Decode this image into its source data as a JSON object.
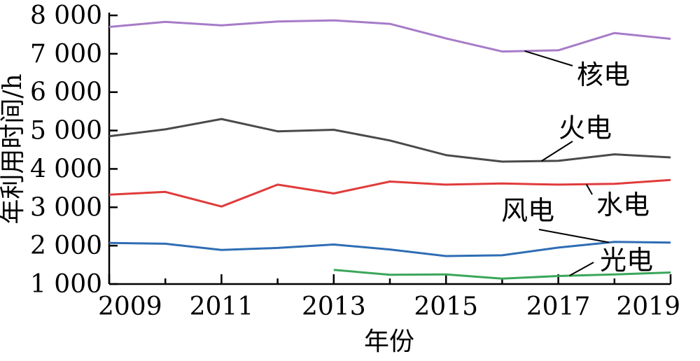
{
  "chart_data": {
    "type": "line",
    "title": "",
    "xlabel": "年份",
    "ylabel": "年利用时间/h",
    "x_ticks": [
      "2009",
      "2011",
      "2013",
      "2015",
      "2017",
      "2019"
    ],
    "y_ticks": [
      "1 000",
      "2 000",
      "3 000",
      "4 000",
      "5 000",
      "6 000",
      "7 000",
      "8 000"
    ],
    "xlim": [
      2009,
      2019
    ],
    "ylim": [
      1000,
      8000
    ],
    "grid": false,
    "series": [
      {
        "name": "核电",
        "color": "#a77bc8",
        "x": [
          2009,
          2010,
          2011,
          2012,
          2013,
          2014,
          2015,
          2016,
          2017,
          2018,
          2019
        ],
        "values": [
          7700,
          7830,
          7740,
          7840,
          7870,
          7780,
          7400,
          7060,
          7090,
          7540,
          7390
        ]
      },
      {
        "name": "火电",
        "color": "#4a4a4a",
        "x": [
          2009,
          2010,
          2011,
          2012,
          2013,
          2014,
          2015,
          2016,
          2017,
          2018,
          2019
        ],
        "values": [
          4850,
          5030,
          5300,
          4980,
          5020,
          4740,
          4360,
          4190,
          4210,
          4380,
          4300
        ]
      },
      {
        "name": "水电",
        "color": "#e03b3b",
        "x": [
          2009,
          2010,
          2011,
          2012,
          2013,
          2014,
          2015,
          2016,
          2017,
          2018,
          2019
        ],
        "values": [
          3330,
          3400,
          3020,
          3590,
          3360,
          3670,
          3590,
          3620,
          3590,
          3610,
          3710
        ]
      },
      {
        "name": "风电",
        "color": "#2e6db4",
        "x": [
          2009,
          2010,
          2011,
          2012,
          2013,
          2014,
          2015,
          2016,
          2017,
          2018,
          2019
        ],
        "values": [
          2070,
          2050,
          1890,
          1940,
          2030,
          1900,
          1730,
          1750,
          1950,
          2100,
          2080
        ]
      },
      {
        "name": "光电",
        "color": "#3aa65a",
        "x": [
          2013,
          2014,
          2015,
          2016,
          2017,
          2018,
          2019
        ],
        "values": [
          1370,
          1240,
          1250,
          1140,
          1210,
          1250,
          1300
        ]
      }
    ]
  }
}
